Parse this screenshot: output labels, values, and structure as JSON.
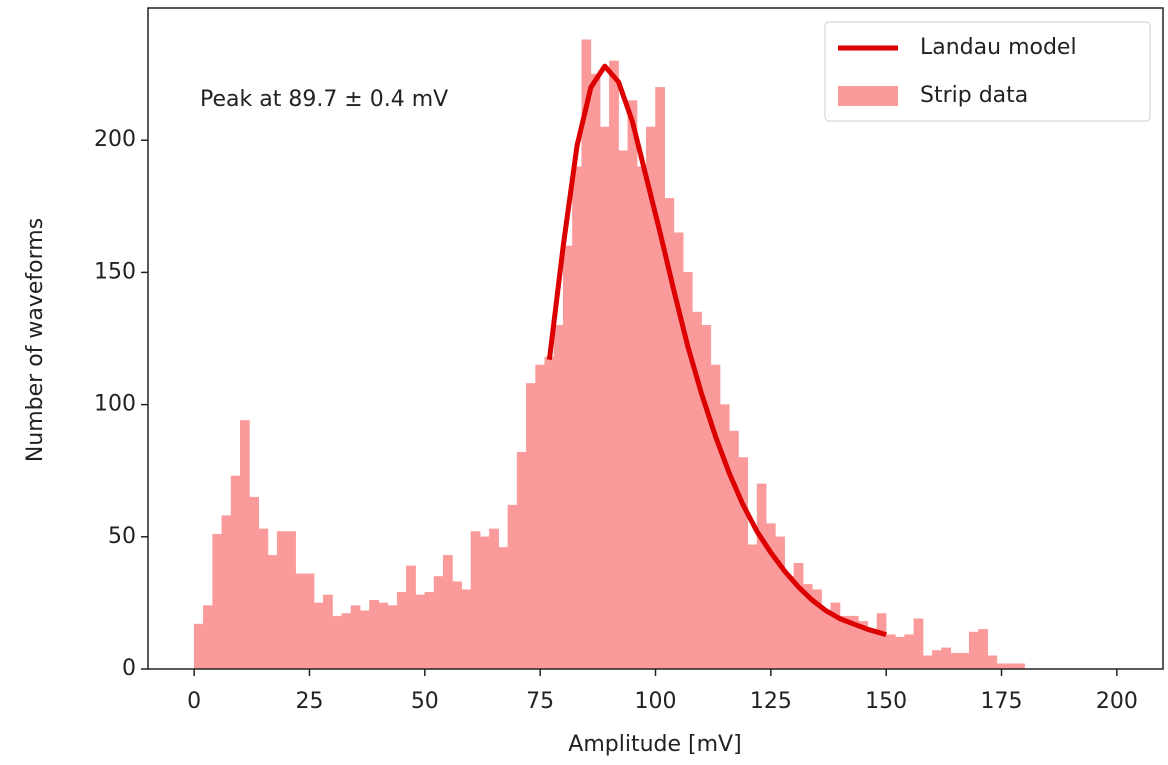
{
  "chart_data": {
    "type": "histogram",
    "xlabel": "Amplitude [mV]",
    "ylabel": "Number of waveforms",
    "annotation": "Peak at 89.7 ± 0.4 mV",
    "xlim": [
      -10,
      210
    ],
    "ylim": [
      0,
      250
    ],
    "xticks": [
      0,
      25,
      50,
      75,
      100,
      125,
      150,
      175,
      200
    ],
    "yticks": [
      0,
      50,
      100,
      150,
      200
    ],
    "legend": "upper right",
    "series": [
      {
        "name": "Landau model",
        "type": "line",
        "color": "#dd0000",
        "x": [
          77,
          80,
          83,
          86,
          89,
          92,
          95,
          98,
          101,
          104,
          107,
          110,
          113,
          116,
          119,
          122,
          125,
          128,
          131,
          134,
          137,
          140,
          143,
          146,
          150
        ],
        "values": [
          117,
          160,
          198,
          220,
          228,
          222,
          207,
          186,
          165,
          143,
          122,
          104,
          88,
          74,
          62,
          52,
          44,
          37,
          31,
          26,
          22,
          19,
          17,
          15,
          13
        ]
      },
      {
        "name": "Strip data",
        "type": "histogram",
        "color": "#fa9a9a",
        "bins": [
          0,
          2,
          4,
          6,
          8,
          10,
          12,
          14,
          16,
          18,
          20,
          22,
          24,
          26,
          28,
          30,
          32,
          34,
          36,
          38,
          40,
          42,
          44,
          46,
          48,
          50,
          52,
          54,
          56,
          58,
          60,
          62,
          64,
          66,
          68,
          70,
          72,
          74,
          76,
          78,
          80,
          82,
          84,
          86,
          88,
          90,
          92,
          94,
          96,
          98,
          100,
          102,
          104,
          106,
          108,
          110,
          112,
          114,
          116,
          118,
          120,
          122,
          124,
          126,
          128,
          130,
          132,
          134,
          136,
          138,
          140,
          142,
          144,
          146,
          148,
          150,
          152,
          154,
          156,
          158,
          160,
          162,
          164,
          166,
          168,
          170,
          172,
          174,
          176,
          178,
          180
        ],
        "values": [
          17,
          24,
          51,
          58,
          73,
          94,
          65,
          53,
          43,
          52,
          52,
          36,
          36,
          25,
          28,
          20,
          21,
          24,
          22,
          26,
          25,
          24,
          29,
          39,
          28,
          29,
          35,
          43,
          33,
          30,
          52,
          50,
          53,
          46,
          62,
          82,
          108,
          115,
          118,
          130,
          160,
          190,
          238,
          225,
          205,
          230,
          196,
          215,
          190,
          205,
          220,
          178,
          165,
          150,
          135,
          130,
          115,
          100,
          90,
          80,
          47,
          70,
          55,
          50,
          35,
          40,
          32,
          30,
          22,
          25,
          20,
          20,
          18,
          15,
          21,
          13,
          12,
          13,
          19,
          5,
          7,
          8,
          6,
          6,
          14,
          15,
          5,
          2,
          2,
          2
        ]
      }
    ]
  }
}
